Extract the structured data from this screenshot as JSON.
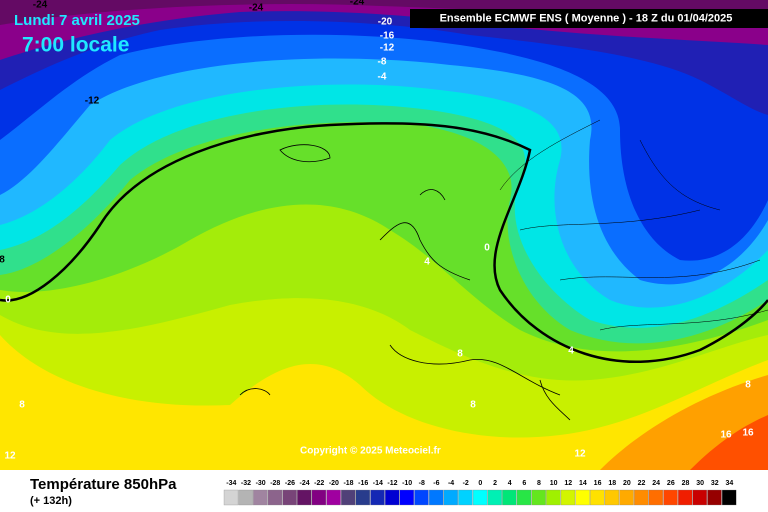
{
  "header": {
    "date": "Lundi 7 avril 2025",
    "time": "7:00 locale",
    "model": "Ensemble ECMWF ENS  ( Moyenne )  -  18 Z du 01/04/2025"
  },
  "copyright": "Copyright © 2025 Meteociel.fr",
  "legend": {
    "title": "Température 850hPa",
    "lead": "(+ 132h)",
    "scale": {
      "values": [
        -34,
        -32,
        -30,
        -28,
        -26,
        -24,
        -22,
        -20,
        -18,
        -16,
        -14,
        -12,
        -10,
        -8,
        -6,
        -4,
        -2,
        0,
        2,
        4,
        6,
        8,
        10,
        12,
        14,
        16,
        18,
        20,
        22,
        24,
        26,
        28,
        30,
        32,
        34
      ],
      "colors": [
        "#d4d4d4",
        "#b4b4b4",
        "#a084a0",
        "#8c648c",
        "#784478",
        "#641464",
        "#820082",
        "#a000a0",
        "#504078",
        "#283c8c",
        "#1428b4",
        "#0000d2",
        "#0000ff",
        "#0046ff",
        "#0078ff",
        "#00aaff",
        "#00d2ff",
        "#00ffff",
        "#00f0b4",
        "#00e678",
        "#28e646",
        "#64e61e",
        "#a0f000",
        "#d2f500",
        "#ffff00",
        "#ffe100",
        "#ffc800",
        "#ffaa00",
        "#ff8c00",
        "#ff6e00",
        "#ff4600",
        "#f01e00",
        "#c80000",
        "#960000",
        "#000000"
      ]
    }
  },
  "contour_labels": [
    -24,
    -24,
    -24,
    -20,
    -16,
    -12,
    -8,
    -4,
    -12,
    8,
    0,
    0,
    4,
    8,
    4,
    8,
    8,
    12,
    12,
    8,
    16,
    16
  ]
}
